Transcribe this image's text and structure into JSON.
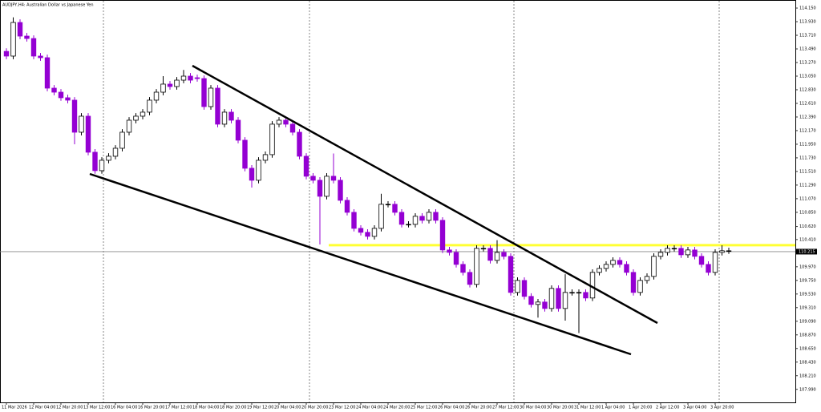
{
  "chart_data": {
    "type": "candlestick",
    "title": "AUDJPY,H4:  Australian Dollar vs Japanese Yen",
    "up_color": "#ffffff",
    "down_color": "#9400d3",
    "level_color": "#ffff33",
    "ylim": [
      107.78,
      114.28
    ],
    "yticks": [
      {
        "value": 114.15,
        "label": "114.150"
      },
      {
        "value": 113.93,
        "label": "113.930"
      },
      {
        "value": 113.71,
        "label": "113.710"
      },
      {
        "value": 113.49,
        "label": "113.490"
      },
      {
        "value": 113.27,
        "label": "113.270"
      },
      {
        "value": 113.05,
        "label": "113.050"
      },
      {
        "value": 112.83,
        "label": "112.830"
      },
      {
        "value": 112.61,
        "label": "112.610"
      },
      {
        "value": 112.39,
        "label": "112.390"
      },
      {
        "value": 112.17,
        "label": "112.170"
      },
      {
        "value": 111.95,
        "label": "111.950"
      },
      {
        "value": 111.73,
        "label": "111.730"
      },
      {
        "value": 111.51,
        "label": "111.510"
      },
      {
        "value": 111.29,
        "label": "111.290"
      },
      {
        "value": 111.07,
        "label": "111.070"
      },
      {
        "value": 110.85,
        "label": "110.850"
      },
      {
        "value": 110.62,
        "label": "110.620"
      },
      {
        "value": 110.41,
        "label": "110.410"
      },
      {
        "value": 109.97,
        "label": "109.970"
      },
      {
        "value": 109.75,
        "label": "109.750"
      },
      {
        "value": 109.53,
        "label": "109.530"
      },
      {
        "value": 109.31,
        "label": "109.310"
      },
      {
        "value": 109.09,
        "label": "109.090"
      },
      {
        "value": 108.87,
        "label": "108.870"
      },
      {
        "value": 108.65,
        "label": "108.650"
      },
      {
        "value": 108.43,
        "label": "108.430"
      },
      {
        "value": 108.21,
        "label": "108.210"
      },
      {
        "value": 107.99,
        "label": "107.990"
      }
    ],
    "current_price": {
      "value": 110.215,
      "label": "110.215"
    },
    "level": 110.32,
    "categories": [
      "11 Mar 2026",
      null,
      null,
      null,
      "12 Mar 04:00",
      null,
      null,
      null,
      "12 Mar 20:00",
      null,
      null,
      null,
      "13 Mar 12:00",
      null,
      null,
      null,
      "16 Mar 04:00",
      null,
      null,
      null,
      "16 Mar 20:00",
      null,
      null,
      null,
      "17 Mar 12:00",
      null,
      null,
      null,
      "18 Mar 04:00",
      null,
      null,
      null,
      "18 Mar 20:00",
      null,
      null,
      null,
      "19 Mar 12:00",
      null,
      null,
      null,
      "20 Mar 04:00",
      null,
      null,
      null,
      "20 Mar 20:00",
      null,
      null,
      null,
      "23 Mar 12:00",
      null,
      null,
      null,
      "24 Mar 04:00",
      null,
      null,
      null,
      "24 Mar 20:00",
      null,
      null,
      null,
      "25 Mar 12:00",
      null,
      null,
      null,
      "26 Mar 04:00",
      null,
      null,
      null,
      "26 Mar 20:00",
      null,
      null,
      null,
      "27 Mar 12:00",
      null,
      null,
      null,
      "30 Mar 04:00",
      null,
      null,
      null,
      "30 Mar 20:00",
      null,
      null,
      null,
      "31 Mar 12:00",
      null,
      null,
      null,
      "1 Apr 04:00",
      null,
      null,
      null,
      "1 Apr 20:00",
      null,
      null,
      null,
      "2 Apr 12:00",
      null,
      null,
      null,
      "3 Apr 04:00",
      null,
      null,
      null,
      "3 Apr 20:00",
      null,
      null
    ],
    "open": [
      113.45,
      113.374,
      113.917,
      113.697,
      113.658,
      113.374,
      113.348,
      112.856,
      112.791,
      112.701,
      112.662,
      112.144,
      112.403,
      111.821,
      111.523,
      111.691,
      111.756,
      111.885,
      112.144,
      112.338,
      112.403,
      112.468,
      112.662,
      112.791,
      112.921,
      112.882,
      112.985,
      113.05,
      113.024,
      113.011,
      112.558,
      112.856,
      112.274,
      112.468,
      112.338,
      112.015,
      111.562,
      111.368,
      111.691,
      111.782,
      112.274,
      112.338,
      112.274,
      112.144,
      111.756,
      111.433,
      111.368,
      111.109,
      111.433,
      111.368,
      111.044,
      110.85,
      110.591,
      110.527,
      110.462,
      110.591,
      110.98,
      110.98,
      110.85,
      110.656,
      110.656,
      110.786,
      110.721,
      110.85,
      110.721,
      110.242,
      110.203,
      110.009,
      109.88,
      109.686,
      110.268,
      110.268,
      110.074,
      110.203,
      110.139,
      109.556,
      109.75,
      109.492,
      109.362,
      109.401,
      109.297,
      109.621,
      109.297,
      109.556,
      109.556,
      109.556,
      109.466,
      109.88,
      109.944,
      110.009,
      110.074,
      110.009,
      109.88,
      109.556,
      109.75,
      109.815,
      110.139,
      110.203,
      110.268,
      110.268,
      110.164,
      110.242,
      110.139,
      110.009,
      109.88,
      110.203,
      110.229
    ],
    "high": [
      113.5,
      114.0,
      113.967,
      113.747,
      113.708,
      113.424,
      113.398,
      112.906,
      112.841,
      112.751,
      112.712,
      112.453,
      112.453,
      111.871,
      111.741,
      111.806,
      111.935,
      112.194,
      112.388,
      112.453,
      112.518,
      112.712,
      112.841,
      113.05,
      112.971,
      113.035,
      113.15,
      113.1,
      113.074,
      113.061,
      112.906,
      112.906,
      112.518,
      112.518,
      112.388,
      112.065,
      111.612,
      111.741,
      111.832,
      112.324,
      112.388,
      112.388,
      112.324,
      112.194,
      111.806,
      111.483,
      111.418,
      111.483,
      111.8,
      111.418,
      111.094,
      110.9,
      110.641,
      110.577,
      110.641,
      111.15,
      111.03,
      111.03,
      110.9,
      110.706,
      110.836,
      110.836,
      110.9,
      110.9,
      110.771,
      110.292,
      110.253,
      110.059,
      109.93,
      110.318,
      110.318,
      110.318,
      110.4,
      110.253,
      110.189,
      109.8,
      109.8,
      109.542,
      109.451,
      109.451,
      109.671,
      109.671,
      109.85,
      109.606,
      109.606,
      109.606,
      109.93,
      109.994,
      110.059,
      110.124,
      110.124,
      110.059,
      109.93,
      109.8,
      109.865,
      110.189,
      110.253,
      110.318,
      110.318,
      110.318,
      110.292,
      110.292,
      110.189,
      110.059,
      110.253,
      110.318,
      110.279
    ],
    "low": [
      113.324,
      113.324,
      113.647,
      113.608,
      113.324,
      113.298,
      112.806,
      112.741,
      112.651,
      112.612,
      111.95,
      112.094,
      111.771,
      111.473,
      111.473,
      111.641,
      111.706,
      111.835,
      112.094,
      112.288,
      112.353,
      112.418,
      112.612,
      112.741,
      112.832,
      112.832,
      112.935,
      112.935,
      112.961,
      112.508,
      112.508,
      112.224,
      112.224,
      112.288,
      111.965,
      111.512,
      111.25,
      111.318,
      111.641,
      111.732,
      112.224,
      112.224,
      112.094,
      111.706,
      111.383,
      111.318,
      110.33,
      111.059,
      111.318,
      110.994,
      110.8,
      110.541,
      110.477,
      110.412,
      110.412,
      110.541,
      110.93,
      110.8,
      110.606,
      110.606,
      110.606,
      110.671,
      110.671,
      110.671,
      110.192,
      110.153,
      109.959,
      109.83,
      109.636,
      109.636,
      110.218,
      110.024,
      110.024,
      110.089,
      109.506,
      109.506,
      109.442,
      109.312,
      109.15,
      109.247,
      109.247,
      109.247,
      109.1,
      109.506,
      108.9,
      109.416,
      109.416,
      109.83,
      109.894,
      109.959,
      109.959,
      109.83,
      109.506,
      109.506,
      109.7,
      109.765,
      110.089,
      110.153,
      110.218,
      110.114,
      110.114,
      110.089,
      109.959,
      109.83,
      109.83,
      110.153,
      110.179
    ],
    "close": [
      113.374,
      113.917,
      113.697,
      113.658,
      113.374,
      113.348,
      112.856,
      112.791,
      112.701,
      112.662,
      112.144,
      112.403,
      111.821,
      111.523,
      111.691,
      111.756,
      111.885,
      112.144,
      112.338,
      112.403,
      112.468,
      112.662,
      112.791,
      112.921,
      112.882,
      112.985,
      113.05,
      112.985,
      113.011,
      112.558,
      112.856,
      112.274,
      112.468,
      112.338,
      112.015,
      111.562,
      111.368,
      111.691,
      111.782,
      112.274,
      112.338,
      112.274,
      112.144,
      111.756,
      111.433,
      111.368,
      111.109,
      111.433,
      111.368,
      111.044,
      110.85,
      110.591,
      110.527,
      110.462,
      110.591,
      110.98,
      110.98,
      110.85,
      110.656,
      110.656,
      110.786,
      110.721,
      110.85,
      110.721,
      110.242,
      110.203,
      110.009,
      109.88,
      109.686,
      110.268,
      110.268,
      110.074,
      110.203,
      110.139,
      109.556,
      109.75,
      109.492,
      109.362,
      109.401,
      109.297,
      109.621,
      109.297,
      109.556,
      109.556,
      109.556,
      109.466,
      109.88,
      109.944,
      110.009,
      110.074,
      110.009,
      109.88,
      109.556,
      109.75,
      109.815,
      110.139,
      110.203,
      110.268,
      110.268,
      110.164,
      110.242,
      110.139,
      110.009,
      109.88,
      110.203,
      110.229,
      110.229
    ]
  }
}
